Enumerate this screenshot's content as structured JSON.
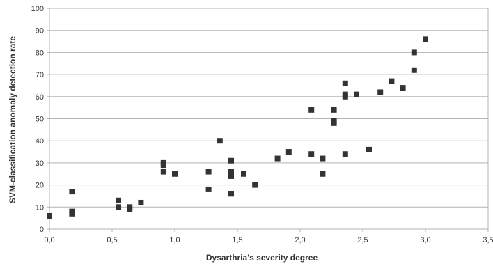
{
  "chart_data": {
    "type": "scatter",
    "title": "",
    "xlabel": "Dysarthria's severity degree",
    "ylabel": "SVM-classification anomaly detection rate",
    "xlim": [
      0,
      3.5
    ],
    "ylim": [
      0,
      100
    ],
    "x_ticks": [
      "0,0",
      "0,5",
      "1,0",
      "1,5",
      "2,0",
      "2,5",
      "3,0",
      "3,5"
    ],
    "y_ticks": [
      "0",
      "10",
      "20",
      "30",
      "40",
      "50",
      "60",
      "70",
      "80",
      "90",
      "100"
    ],
    "grid": "horizontal",
    "legend": "none",
    "marker": "square",
    "marker_color": "#333333",
    "series": [
      {
        "points": [
          [
            0.0,
            6
          ],
          [
            0.18,
            17
          ],
          [
            0.18,
            8
          ],
          [
            0.18,
            7
          ],
          [
            0.55,
            13
          ],
          [
            0.55,
            10
          ],
          [
            0.64,
            10
          ],
          [
            0.64,
            9
          ],
          [
            0.73,
            12
          ],
          [
            0.91,
            30
          ],
          [
            0.91,
            29
          ],
          [
            0.91,
            26
          ],
          [
            1.0,
            25
          ],
          [
            1.27,
            26
          ],
          [
            1.27,
            18
          ],
          [
            1.36,
            40
          ],
          [
            1.45,
            31
          ],
          [
            1.45,
            26
          ],
          [
            1.45,
            24
          ],
          [
            1.45,
            16
          ],
          [
            1.55,
            25
          ],
          [
            1.64,
            20
          ],
          [
            1.82,
            32
          ],
          [
            1.91,
            35
          ],
          [
            2.09,
            54
          ],
          [
            2.09,
            34
          ],
          [
            2.18,
            32
          ],
          [
            2.18,
            25
          ],
          [
            2.27,
            54
          ],
          [
            2.27,
            49
          ],
          [
            2.27,
            48
          ],
          [
            2.36,
            66
          ],
          [
            2.36,
            61
          ],
          [
            2.36,
            60
          ],
          [
            2.36,
            34
          ],
          [
            2.45,
            61
          ],
          [
            2.55,
            36
          ],
          [
            2.64,
            62
          ],
          [
            2.73,
            67
          ],
          [
            2.82,
            64
          ],
          [
            2.91,
            80
          ],
          [
            2.91,
            72
          ],
          [
            3.0,
            86
          ]
        ]
      }
    ]
  }
}
